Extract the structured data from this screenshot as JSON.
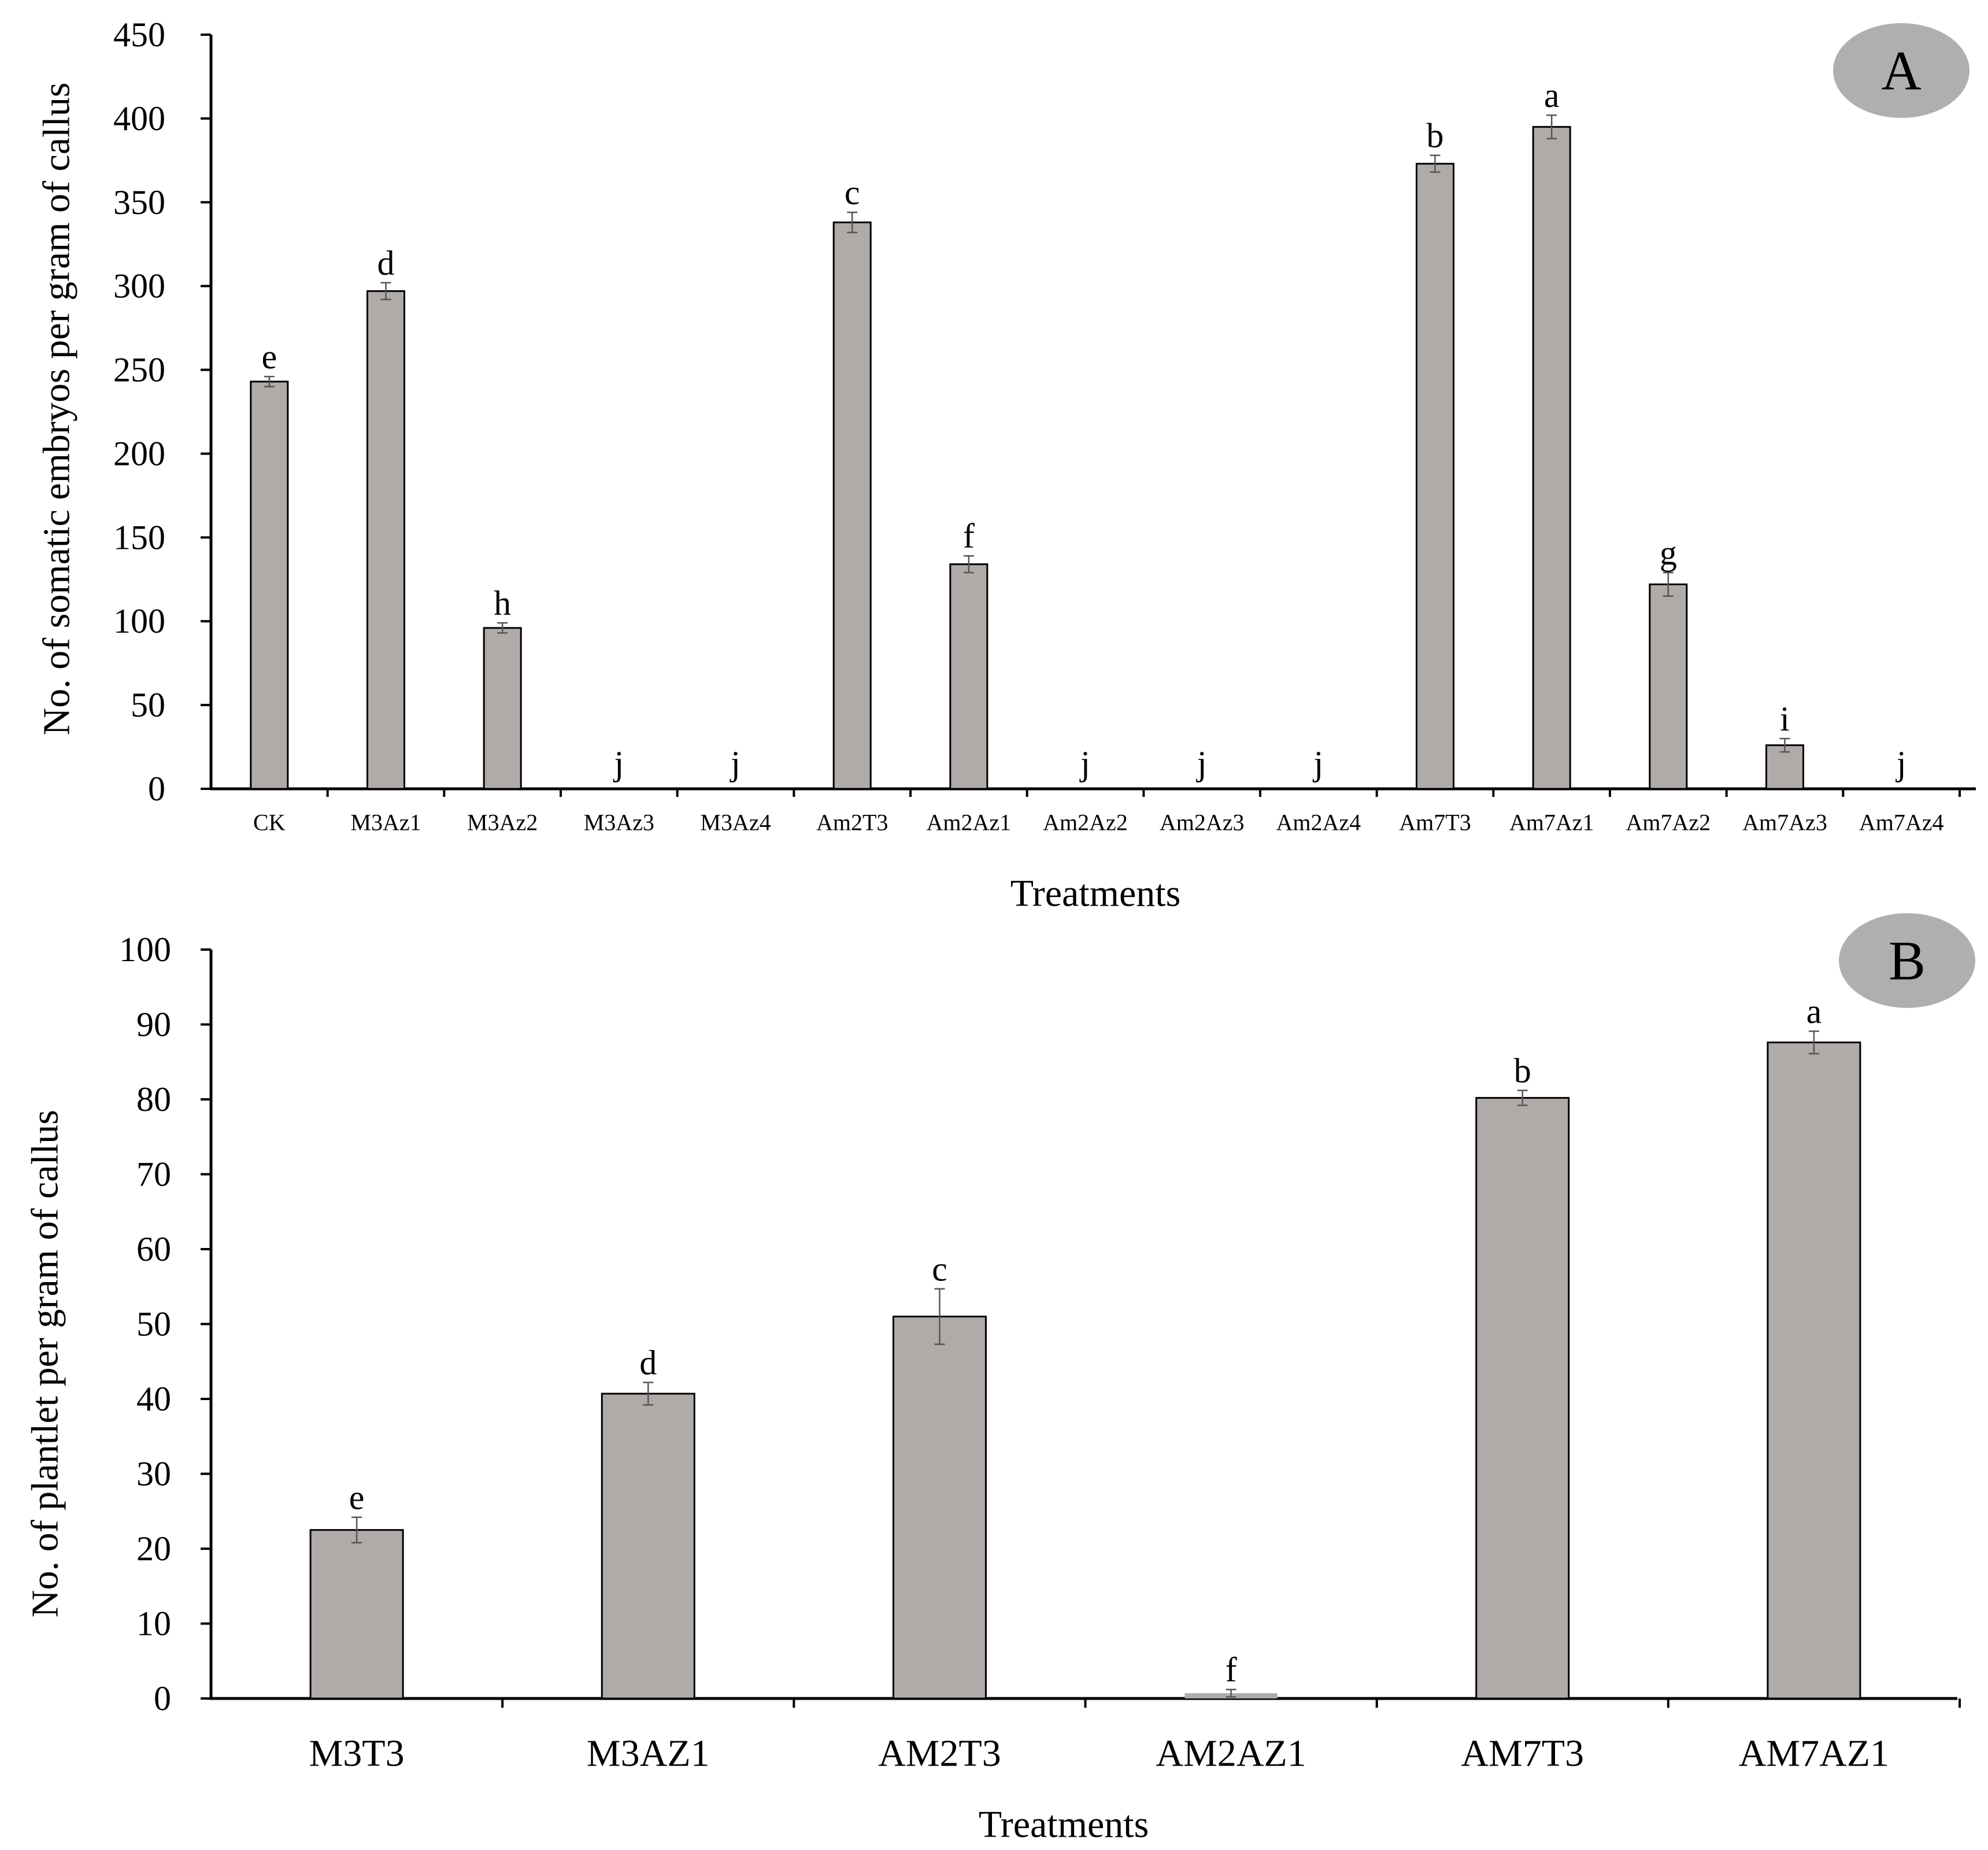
{
  "colors": {
    "bar_fill": "#b0aba9",
    "bar_stroke": "#000000",
    "error_bar": "#555555",
    "axis": "#000000",
    "panel_badge": "#b1afae"
  },
  "chart_data": [
    {
      "panel": "A",
      "type": "bar",
      "title": "",
      "xlabel": "Treatments",
      "ylabel": "No. of somatic embryos per  gram of callus",
      "ylim": [
        0,
        450
      ],
      "yticks": [
        0,
        50,
        100,
        150,
        200,
        250,
        300,
        350,
        400,
        450
      ],
      "grid": false,
      "categories": [
        "CK",
        "M3Az1",
        "M3Az2",
        "M3Az3",
        "M3Az4",
        "Am2T3",
        "Am2Az1",
        "Am2Az2",
        "Am2Az3",
        "Am2Az4",
        "Am7T3",
        "Am7Az1",
        "Am7Az2",
        "Am7Az3",
        "Am7Az4"
      ],
      "values": [
        243,
        297,
        96,
        0,
        0,
        338,
        134,
        0,
        0,
        0,
        373,
        395,
        122,
        26,
        0
      ],
      "errors": [
        3,
        5,
        3,
        0,
        0,
        6,
        5,
        0,
        0,
        0,
        5,
        7,
        7,
        4,
        0
      ],
      "significance": [
        "e",
        "d",
        "h",
        "j",
        "j",
        "c",
        "f",
        "j",
        "j",
        "j",
        "b",
        "a",
        "g",
        "i",
        "j"
      ]
    },
    {
      "panel": "B",
      "type": "bar",
      "title": "",
      "xlabel": "Treatments",
      "ylabel": "No. of plantlet  per  gram of callus",
      "ylim": [
        0,
        100
      ],
      "yticks": [
        0,
        10,
        20,
        30,
        40,
        50,
        60,
        70,
        80,
        90,
        100
      ],
      "grid": false,
      "categories": [
        "M3T3",
        "M3AZ1",
        "AM2T3",
        "AM2AZ1",
        "AM7T3",
        "AM7AZ1"
      ],
      "values": [
        22.5,
        40.7,
        51,
        0.7,
        80.2,
        87.6
      ],
      "errors": [
        1.7,
        1.5,
        3.7,
        0.5,
        1.0,
        1.5
      ],
      "significance": [
        "e",
        "d",
        "c",
        "f",
        "b",
        "a"
      ]
    }
  ]
}
